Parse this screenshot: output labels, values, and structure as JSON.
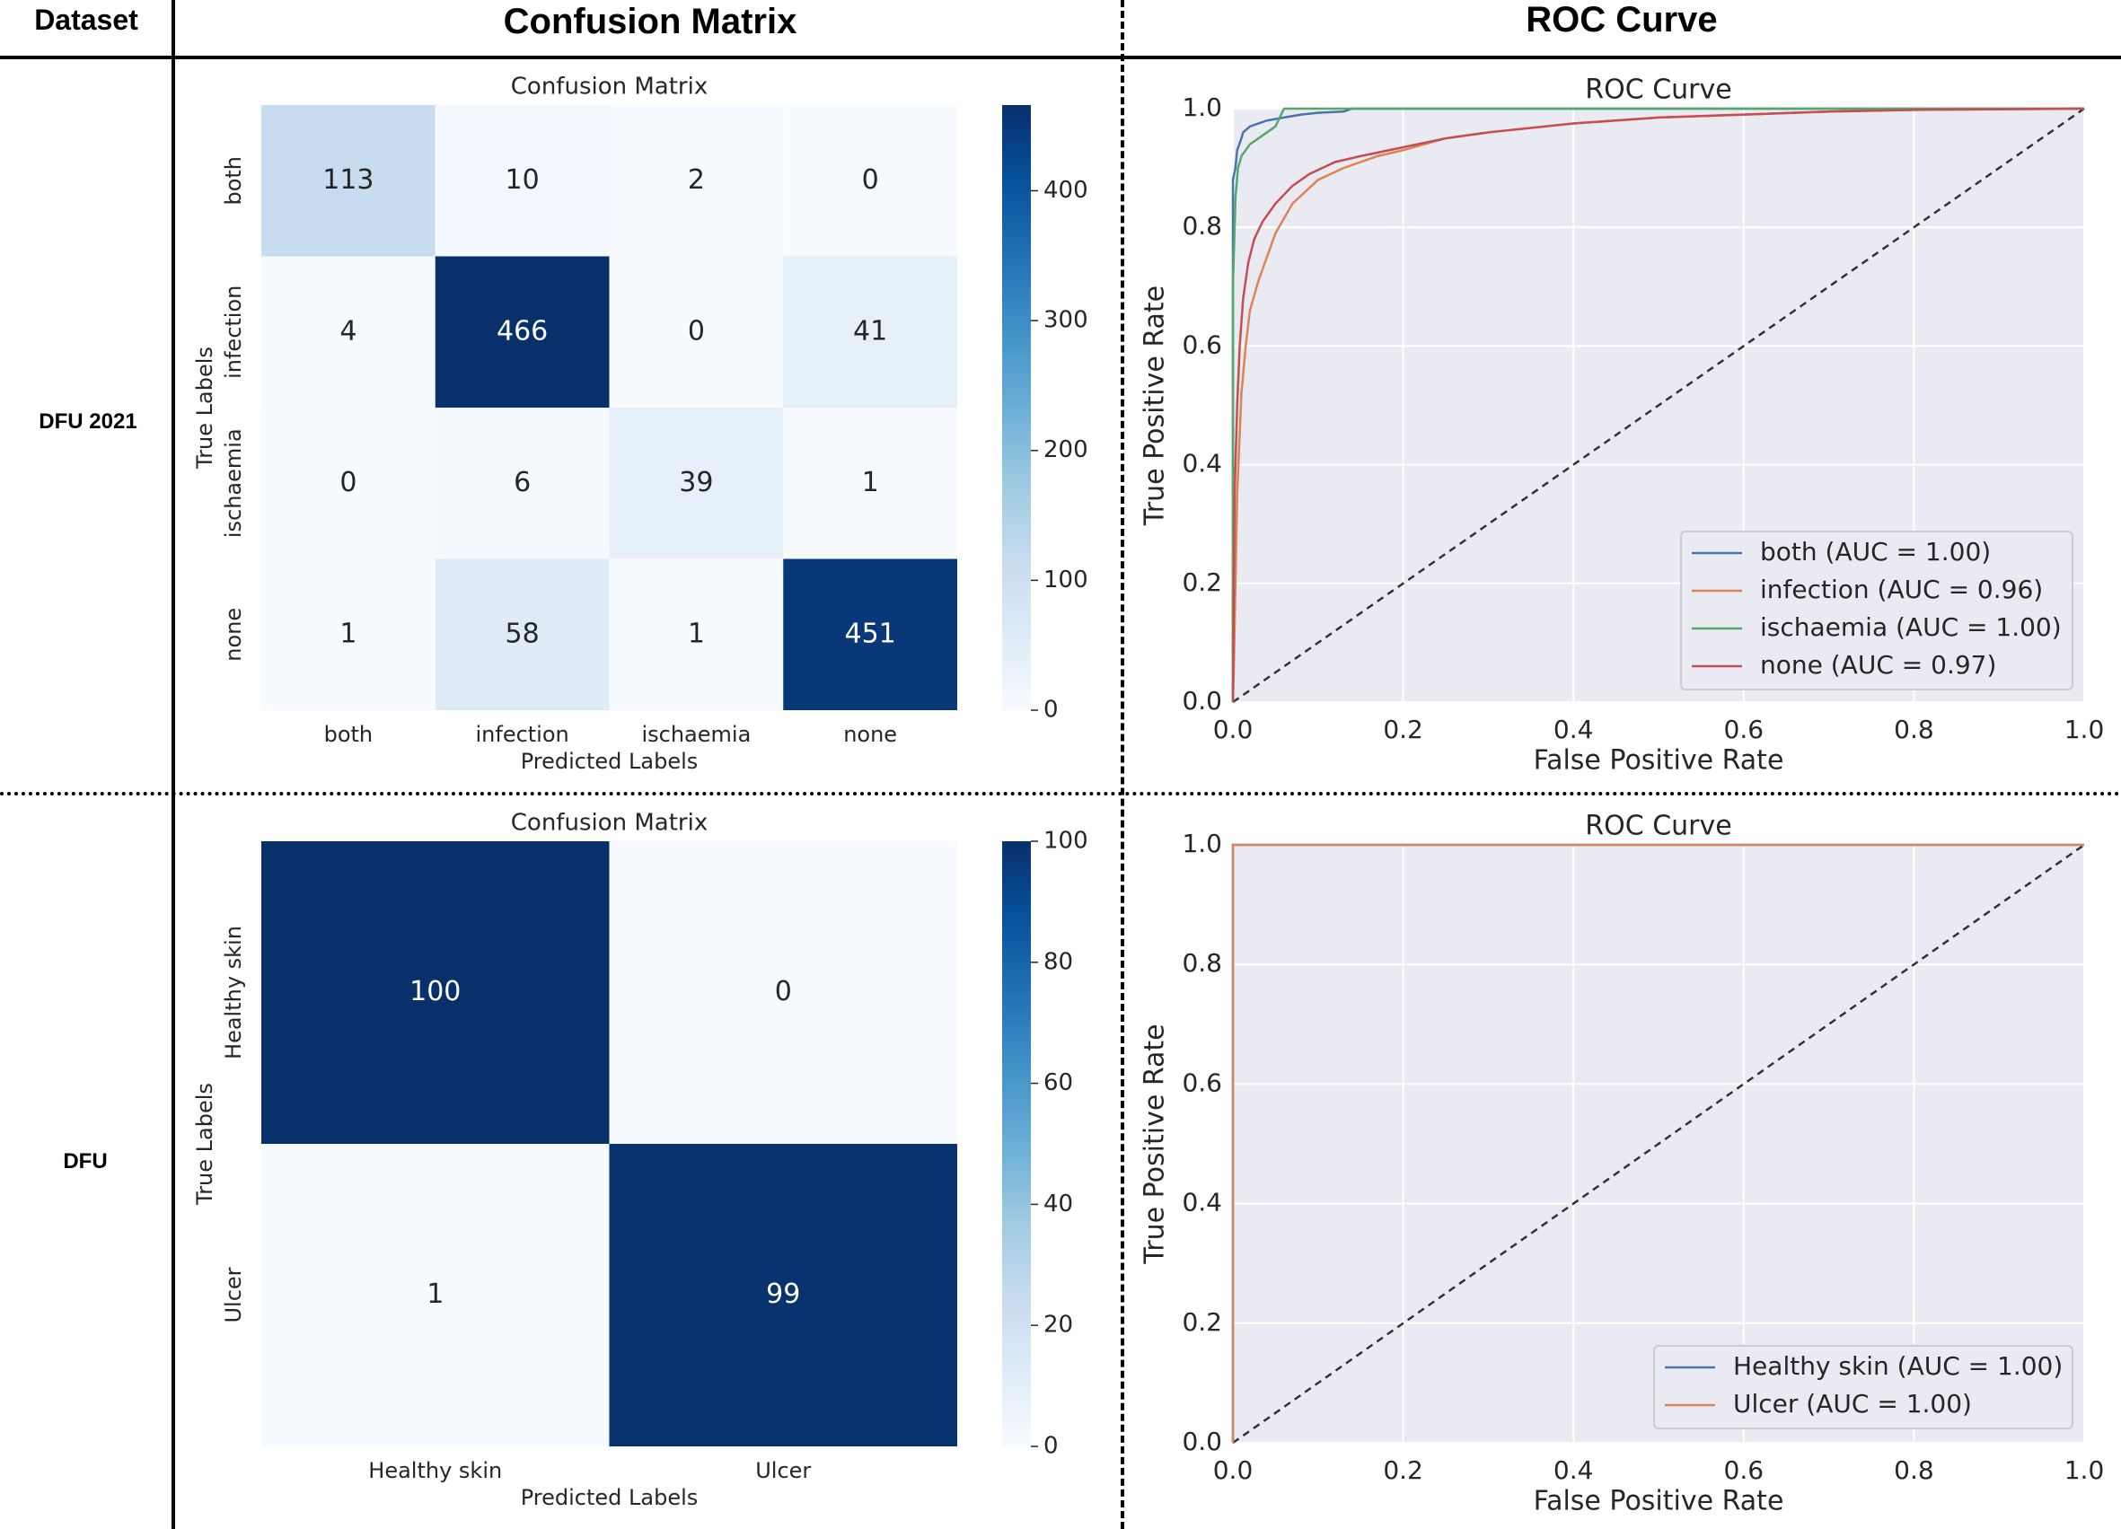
{
  "headers": {
    "dataset": "Dataset",
    "confusion": "Confusion Matrix",
    "roc": "ROC Curve"
  },
  "rows": [
    {
      "label": "DFU 2021"
    },
    {
      "label": "DFU"
    }
  ],
  "colors": {
    "cmap_low": "#f7fbff",
    "cmap_high": "#08306b",
    "plot_bg": "#eaeaf2",
    "grid": "#ffffff",
    "diag": "#333333"
  },
  "chart_data": [
    {
      "type": "heatmap",
      "title": "Confusion Matrix",
      "xlabel": "Predicted Labels",
      "ylabel": "True Labels",
      "labels": [
        "both",
        "infection",
        "ischaemia",
        "none"
      ],
      "matrix": [
        [
          113,
          10,
          2,
          0
        ],
        [
          4,
          466,
          0,
          41
        ],
        [
          0,
          6,
          39,
          1
        ],
        [
          1,
          58,
          1,
          451
        ]
      ],
      "vmin": 0,
      "vmax": 466,
      "colorbar_ticks": [
        0,
        100,
        200,
        300,
        400
      ]
    },
    {
      "type": "line",
      "title": "ROC Curve",
      "xlabel": "False Positive Rate",
      "ylabel": "True Positive Rate",
      "xlim": [
        0,
        1
      ],
      "ylim": [
        0,
        1
      ],
      "ticks": [
        0.0,
        0.2,
        0.4,
        0.6,
        0.8,
        1.0
      ],
      "tick_labels": [
        "0.0",
        "0.2",
        "0.4",
        "0.6",
        "0.8",
        "1.0"
      ],
      "legend_position": "lower-right",
      "series": [
        {
          "name": "both (AUC = 1.00)",
          "color": "#4c72b0",
          "x": [
            0,
            0,
            0.003,
            0.005,
            0.01,
            0.012,
            0.02,
            0.03,
            0.04,
            0.06,
            0.08,
            0.1,
            0.13,
            0.14,
            1.0
          ],
          "y": [
            0,
            0.88,
            0.9,
            0.93,
            0.95,
            0.96,
            0.97,
            0.975,
            0.98,
            0.985,
            0.99,
            0.993,
            0.995,
            1.0,
            1.0
          ]
        },
        {
          "name": "infection (AUC = 0.96)",
          "color": "#dd8452",
          "x": [
            0,
            0.001,
            0.003,
            0.005,
            0.01,
            0.015,
            0.02,
            0.03,
            0.04,
            0.05,
            0.07,
            0.1,
            0.13,
            0.17,
            0.2,
            0.25,
            0.3,
            0.4,
            0.5,
            0.6,
            0.7,
            0.8,
            1.0
          ],
          "y": [
            0,
            0.05,
            0.2,
            0.35,
            0.52,
            0.6,
            0.66,
            0.71,
            0.75,
            0.79,
            0.84,
            0.88,
            0.9,
            0.92,
            0.93,
            0.95,
            0.96,
            0.975,
            0.985,
            0.99,
            0.995,
            0.998,
            1.0
          ]
        },
        {
          "name": "ischaemia (AUC = 1.00)",
          "color": "#55a868",
          "x": [
            0,
            0,
            0.003,
            0.006,
            0.01,
            0.02,
            0.03,
            0.04,
            0.05,
            0.06,
            1.0
          ],
          "y": [
            0,
            0.7,
            0.85,
            0.9,
            0.92,
            0.94,
            0.95,
            0.96,
            0.97,
            1.0,
            1.0
          ]
        },
        {
          "name": "none (AUC = 0.97)",
          "color": "#c44e52",
          "x": [
            0,
            0.002,
            0.005,
            0.008,
            0.012,
            0.018,
            0.025,
            0.035,
            0.05,
            0.07,
            0.09,
            0.12,
            0.15,
            0.2,
            0.25,
            0.3,
            0.4,
            0.5,
            0.6,
            0.7,
            0.8,
            1.0
          ],
          "y": [
            0,
            0.35,
            0.5,
            0.6,
            0.68,
            0.74,
            0.78,
            0.81,
            0.84,
            0.87,
            0.89,
            0.91,
            0.92,
            0.935,
            0.95,
            0.96,
            0.975,
            0.985,
            0.99,
            0.995,
            0.998,
            1.0
          ]
        }
      ]
    },
    {
      "type": "heatmap",
      "title": "Confusion Matrix",
      "xlabel": "Predicted Labels",
      "ylabel": "True Labels",
      "labels": [
        "Healthy skin",
        "Ulcer"
      ],
      "matrix": [
        [
          100,
          0
        ],
        [
          1,
          99
        ]
      ],
      "vmin": 0,
      "vmax": 100,
      "colorbar_ticks": [
        0,
        20,
        40,
        60,
        80,
        100
      ]
    },
    {
      "type": "line",
      "title": "ROC Curve",
      "xlabel": "False Positive Rate",
      "ylabel": "True Positive Rate",
      "xlim": [
        0,
        1
      ],
      "ylim": [
        0,
        1
      ],
      "ticks": [
        0.0,
        0.2,
        0.4,
        0.6,
        0.8,
        1.0
      ],
      "tick_labels": [
        "0.0",
        "0.2",
        "0.4",
        "0.6",
        "0.8",
        "1.0"
      ],
      "legend_position": "lower-right",
      "series": [
        {
          "name": "Healthy skin (AUC = 1.00)",
          "color": "#4c72b0",
          "x": [
            0,
            0,
            1.0
          ],
          "y": [
            0,
            1.0,
            1.0
          ]
        },
        {
          "name": "Ulcer (AUC = 1.00)",
          "color": "#dd8452",
          "x": [
            0,
            0,
            1.0
          ],
          "y": [
            0,
            1.0,
            1.0
          ]
        }
      ]
    }
  ]
}
